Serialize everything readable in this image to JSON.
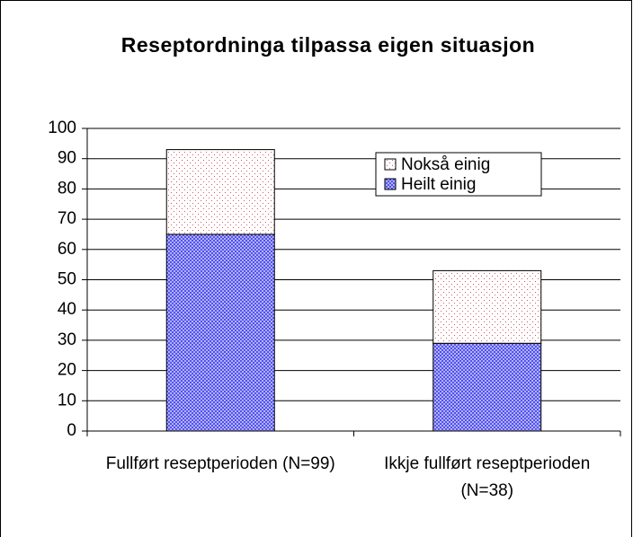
{
  "chart_data": {
    "type": "stacked-bar",
    "title": "Reseptordninga tilpassa eigen situasjon",
    "categories": [
      "Fullført reseptperioden (N=99)",
      "Ikkje fullført reseptperioden (N=38)"
    ],
    "series": [
      {
        "name": "Heilt einig",
        "color": "#3a3ae6",
        "values": [
          65,
          29
        ]
      },
      {
        "name": "Nokså einig",
        "color": "#d05a6a",
        "values": [
          28,
          24
        ]
      }
    ],
    "ylim": [
      0,
      100
    ],
    "yticks": [
      0,
      10,
      20,
      30,
      40,
      50,
      60,
      70,
      80,
      90,
      100
    ],
    "grid": true,
    "legend": "upper right"
  }
}
